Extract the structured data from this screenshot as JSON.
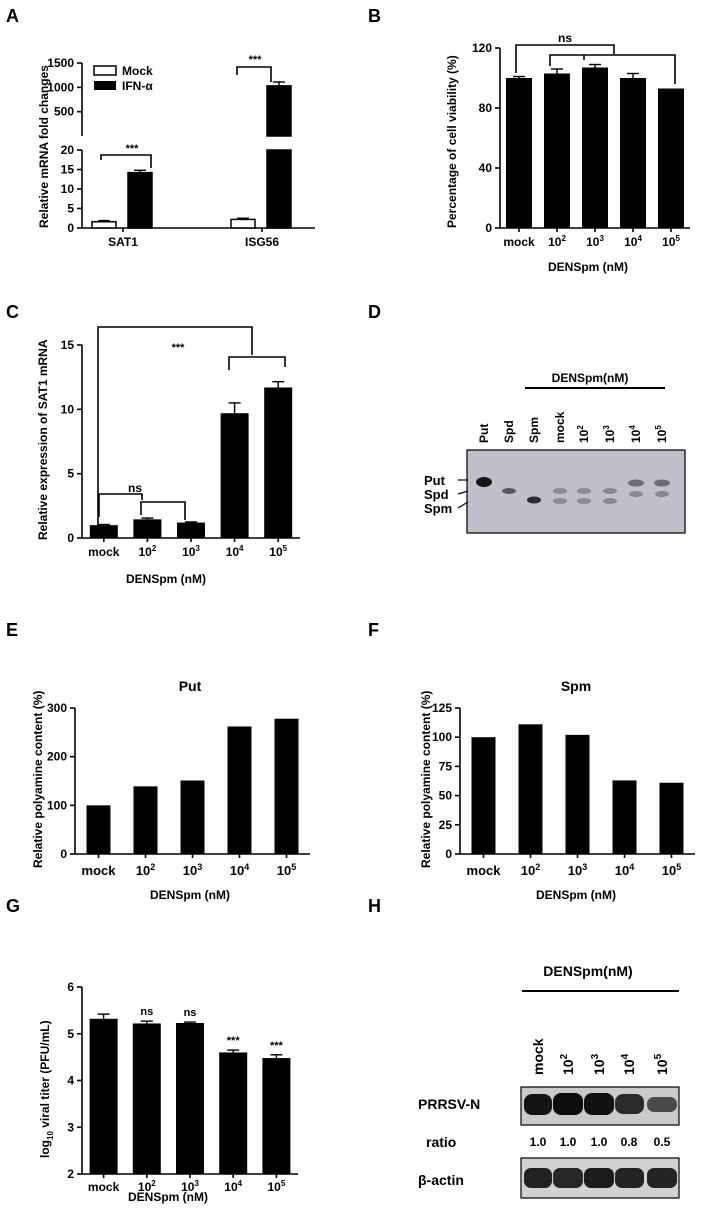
{
  "chart_data": [
    {
      "panel": "A",
      "type": "bar",
      "categories": [
        "SAT1",
        "ISG56"
      ],
      "series": [
        {
          "name": "Mock",
          "values": [
            1.6,
            2.2
          ],
          "errors": [
            0.3,
            0.3
          ]
        },
        {
          "name": "IFN-α",
          "values": [
            14.2,
            1030
          ],
          "errors": [
            0.6,
            80
          ]
        }
      ],
      "ylabel": "Relative mRNA fold changes",
      "yticks_lower": [
        "0",
        "5",
        "10",
        "15",
        "20"
      ],
      "yticks_upper": [
        "500",
        "1000",
        "1500"
      ],
      "ylim": [
        0,
        1500
      ],
      "annotations": [
        "***",
        "***"
      ]
    },
    {
      "panel": "B",
      "type": "bar",
      "categories": [
        "mock",
        "10^2",
        "10^3",
        "10^4",
        "10^5"
      ],
      "values": [
        100,
        103,
        107,
        100,
        93
      ],
      "errors": [
        1,
        3,
        2,
        3,
        0
      ],
      "ylabel": "Percentage of cell viability (%)",
      "xlabel": "DENSpm (nM)",
      "yticks": [
        "0",
        "40",
        "80",
        "120"
      ],
      "ylim": [
        0,
        120
      ],
      "annotations": [
        "ns"
      ]
    },
    {
      "panel": "C",
      "type": "bar",
      "categories": [
        "mock",
        "10^2",
        "10^3",
        "10^4",
        "10^5"
      ],
      "values": [
        1.0,
        1.45,
        1.2,
        9.7,
        11.7
      ],
      "errors": [
        0.05,
        0.1,
        0.05,
        0.8,
        0.45
      ],
      "ylabel": "Relative expression of SAT1 mRNA",
      "xlabel": "DENSpm (nM)",
      "yticks": [
        "0",
        "5",
        "10",
        "15"
      ],
      "ylim": [
        0,
        15
      ],
      "annotations": [
        "***",
        "ns"
      ]
    },
    {
      "panel": "E",
      "type": "bar",
      "categories": [
        "mock",
        "10^2",
        "10^3",
        "10^4",
        "10^5"
      ],
      "values": [
        100,
        139,
        151,
        262,
        278
      ],
      "title": "Put",
      "ylabel": "Relative  polyamine content (%)",
      "xlabel": "DENSpm (nM)",
      "yticks": [
        "0",
        "100",
        "200",
        "300"
      ],
      "ylim": [
        0,
        300
      ]
    },
    {
      "panel": "F",
      "type": "bar",
      "categories": [
        "mock",
        "10^2",
        "10^3",
        "10^4",
        "10^5"
      ],
      "values": [
        100,
        111,
        102,
        63,
        61
      ],
      "title": "Spm",
      "ylabel": "Relative  polyamine content (%)",
      "xlabel": "DENSpm (nM)",
      "yticks": [
        "0",
        "25",
        "50",
        "75",
        "100",
        "125"
      ],
      "ylim": [
        0,
        125
      ]
    },
    {
      "panel": "G",
      "type": "bar",
      "categories": [
        "mock",
        "10^2",
        "10^3",
        "10^4",
        "10^5"
      ],
      "values": [
        5.32,
        5.22,
        5.23,
        4.6,
        4.48
      ],
      "errors": [
        0.1,
        0.05,
        0.02,
        0.05,
        0.07
      ],
      "ylabel": "log10 viral titer (PFU/mL)",
      "xlabel": "DENSpm (nM)",
      "yticks": [
        "2",
        "3",
        "4",
        "5",
        "6"
      ],
      "ylim": [
        2,
        6
      ],
      "annotations": [
        "ns",
        "ns",
        "***",
        "***"
      ]
    }
  ],
  "panels": {
    "A": {
      "letter": "A",
      "legend": [
        "Mock",
        "IFN-α"
      ],
      "cat1": "SAT1",
      "cat2": "ISG56",
      "star": "***"
    },
    "B": {
      "letter": "B",
      "ns": "ns"
    },
    "C": {
      "letter": "C",
      "star": "***",
      "ns": "ns"
    },
    "D": {
      "letter": "D",
      "group_label": "DENSpm(nM)",
      "lanes": [
        "Put",
        "Spd",
        "Spm",
        "mock",
        "10",
        "10",
        "10",
        "10"
      ],
      "lane_exponents": [
        "",
        "",
        "",
        "",
        "2",
        "3",
        "4",
        "5"
      ],
      "band_labels": [
        "Put",
        "Spd",
        "Spm"
      ]
    },
    "E": {
      "letter": "E"
    },
    "F": {
      "letter": "F"
    },
    "G": {
      "letter": "G",
      "ylabel_pre": "log",
      "ylabel_sub": "10",
      "ylabel_post": " viral titer (PFU/mL)"
    },
    "H": {
      "letter": "H",
      "group_label": "DENSpm(nM)",
      "lanes": [
        "mock",
        "10",
        "10",
        "10",
        "10"
      ],
      "lane_exponents": [
        "",
        "2",
        "3",
        "4",
        "5"
      ],
      "row1_label": "PRRSV-N",
      "ratio_label": "ratio",
      "ratios": [
        "1.0",
        "1.0",
        "1.0",
        "0.8",
        "0.5"
      ],
      "row2_label": "β-actin"
    }
  },
  "common": {
    "xlabel": "DENSpm (nM)",
    "cat_base": [
      "mock",
      "10",
      "10",
      "10",
      "10"
    ],
    "cat_exp": [
      "",
      "2",
      "3",
      "4",
      "5"
    ]
  }
}
